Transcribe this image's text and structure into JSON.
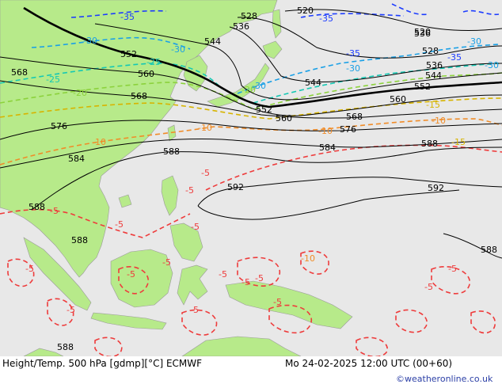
{
  "map": {
    "land_color": "#b7ea8a",
    "sea_color": "#e8e8e8",
    "height_color": "#000000",
    "temp_colors": {
      "-35": "#1c3cff",
      "-30": "#1aa0e6",
      "-25": "#14c8b4",
      "-20": "#8cd23c",
      "-15": "#d7b400",
      "-10": "#f08c28",
      "-5": "#ee3c3c"
    },
    "height_labels": [
      "568",
      "552",
      "560",
      "544",
      "528",
      "536",
      "520",
      "576",
      "568",
      "584",
      "588",
      "592",
      "536",
      "552",
      "544",
      "560",
      "568",
      "576",
      "584",
      "588",
      "592",
      "520",
      "528",
      "536",
      "544",
      "552",
      "560",
      "588",
      "588",
      "588",
      "588"
    ],
    "temp_labels": [
      "-35",
      "-30",
      "-30",
      "-25",
      "-25",
      "-20",
      "-20",
      "-10",
      "-10",
      "-5",
      "-5",
      "-5",
      "-5",
      "-5",
      "-5",
      "-5",
      "-5",
      "-5",
      "-5",
      "-30",
      "-30",
      "-30",
      "-30",
      "-35",
      "-35",
      "-35",
      "-15",
      "-15",
      "-10",
      "-10",
      "-10",
      "-5",
      "-5",
      "-5",
      "-5",
      "-5",
      "-5"
    ]
  },
  "footer": {
    "title": "Height/Temp. 500 hPa [gdmp][°C] ECMWF",
    "datetime": "Mo 24-02-2025 12:00 UTC (00+60)",
    "credit": "©weatheronline.co.uk"
  }
}
